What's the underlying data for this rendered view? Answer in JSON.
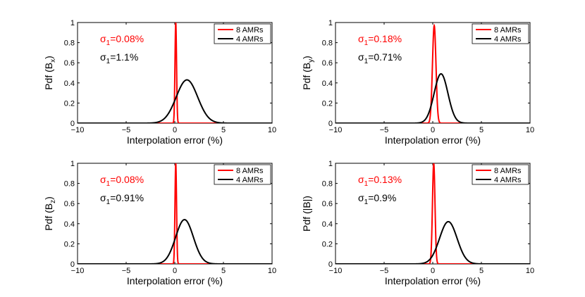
{
  "chart_data": [
    {
      "type": "line",
      "xlabel": "Interpolation error (%)",
      "ylabel_prefix": "Pdf (B",
      "ylabel_sub": "x",
      "ylabel_suffix": ")",
      "xlim": [
        -10,
        10
      ],
      "ylim": [
        0,
        1
      ],
      "xticks": [
        "−10",
        "−5",
        "0",
        "5",
        "10"
      ],
      "yticks": [
        "0",
        "0.2",
        "0.4",
        "0.6",
        "0.8",
        "1"
      ],
      "legend_position": "top-right",
      "annotations": [
        {
          "prefix": "σ",
          "sub": "1",
          "value": "=0.08%",
          "color": "#ff0000"
        },
        {
          "prefix": "σ",
          "sub": "1",
          "value": "=1.1%",
          "color": "#000000"
        }
      ],
      "series": [
        {
          "name": "8 AMRs",
          "color": "#ff0000",
          "mean": 0.1,
          "sigma": 0.08,
          "peak": 1.0
        },
        {
          "name": "4 AMRs",
          "color": "#000000",
          "mean": 1.25,
          "sigma": 1.1,
          "peak": 0.43
        }
      ]
    },
    {
      "type": "line",
      "xlabel": "Interpolation error (%)",
      "ylabel_prefix": "Pdf (B",
      "ylabel_sub": "y",
      "ylabel_suffix": ")",
      "xlim": [
        -10,
        10
      ],
      "ylim": [
        0,
        1
      ],
      "xticks": [
        "−10",
        "−5",
        "0",
        "5",
        "10"
      ],
      "yticks": [
        "0",
        "0.2",
        "0.4",
        "0.6",
        "0.8",
        "1"
      ],
      "legend_position": "top-right",
      "annotations": [
        {
          "prefix": "σ",
          "sub": "1",
          "value": "=0.18%",
          "color": "#ff0000"
        },
        {
          "prefix": "σ",
          "sub": "1",
          "value": "=0.71%",
          "color": "#000000"
        }
      ],
      "series": [
        {
          "name": "8 AMRs",
          "color": "#ff0000",
          "mean": 0.15,
          "sigma": 0.18,
          "peak": 0.97
        },
        {
          "name": "4 AMRs",
          "color": "#000000",
          "mean": 0.85,
          "sigma": 0.71,
          "peak": 0.49
        }
      ]
    },
    {
      "type": "line",
      "xlabel": "Interpolation error (%)",
      "ylabel_prefix": "Pdf (B",
      "ylabel_sub": "z",
      "ylabel_suffix": ")",
      "xlim": [
        -10,
        10
      ],
      "ylim": [
        0,
        1
      ],
      "xticks": [
        "−10",
        "−5",
        "0",
        "5",
        "10"
      ],
      "yticks": [
        "0",
        "0.2",
        "0.4",
        "0.6",
        "0.8",
        "1"
      ],
      "legend_position": "top-right",
      "annotations": [
        {
          "prefix": "σ",
          "sub": "1",
          "value": "=0.08%",
          "color": "#ff0000"
        },
        {
          "prefix": "σ",
          "sub": "1",
          "value": "=0.91%",
          "color": "#000000"
        }
      ],
      "series": [
        {
          "name": "8 AMRs",
          "color": "#ff0000",
          "mean": 0.1,
          "sigma": 0.08,
          "peak": 1.0
        },
        {
          "name": "4 AMRs",
          "color": "#000000",
          "mean": 1.0,
          "sigma": 0.91,
          "peak": 0.44
        }
      ]
    },
    {
      "type": "line",
      "xlabel": "Interpolation error (%)",
      "ylabel_prefix": "Pdf (|B|",
      "ylabel_sub": "",
      "ylabel_suffix": ")",
      "xlim": [
        -10,
        10
      ],
      "ylim": [
        0,
        1
      ],
      "xticks": [
        "−10",
        "−5",
        "0",
        "5",
        "10"
      ],
      "yticks": [
        "0",
        "0.2",
        "0.4",
        "0.6",
        "0.8",
        "1"
      ],
      "legend_position": "top-right",
      "annotations": [
        {
          "prefix": "σ",
          "sub": "1",
          "value": "=0.13%",
          "color": "#ff0000"
        },
        {
          "prefix": "σ",
          "sub": "1",
          "value": "=0.9%",
          "color": "#000000"
        }
      ],
      "series": [
        {
          "name": "8 AMRs",
          "color": "#ff0000",
          "mean": 0.1,
          "sigma": 0.13,
          "peak": 1.0
        },
        {
          "name": "4 AMRs",
          "color": "#000000",
          "mean": 1.6,
          "sigma": 0.9,
          "peak": 0.42
        }
      ]
    }
  ]
}
